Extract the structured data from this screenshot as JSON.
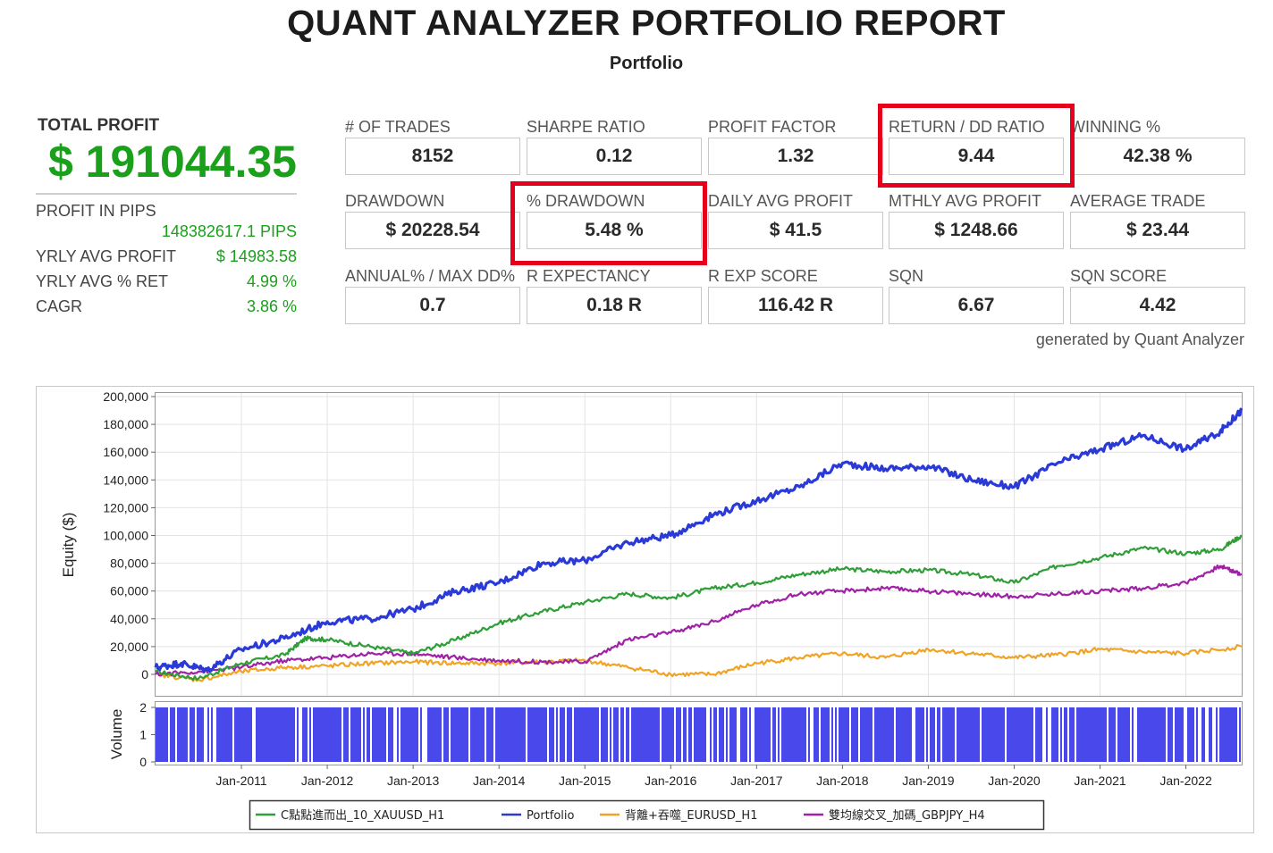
{
  "report": {
    "title": "QUANT ANALYZER PORTFOLIO REPORT",
    "subtitle": "Portfolio",
    "generated_by": "generated by Quant Analyzer"
  },
  "summary": {
    "total_profit_label": "TOTAL PROFIT",
    "total_profit_value": "$ 191044.35",
    "pips_label": "PROFIT IN PIPS",
    "pips_value": "148382617.1 PIPS",
    "rows": [
      {
        "label": "YRLY AVG PROFIT",
        "value": "$ 14983.58"
      },
      {
        "label": "YRLY AVG % RET",
        "value": "4.99 %"
      },
      {
        "label": "CAGR",
        "value": "3.86 %"
      }
    ]
  },
  "metrics": [
    {
      "label": "# OF TRADES",
      "value": "8152"
    },
    {
      "label": "SHARPE RATIO",
      "value": "0.12"
    },
    {
      "label": "PROFIT FACTOR",
      "value": "1.32"
    },
    {
      "label": "RETURN / DD RATIO",
      "value": "9.44",
      "highlighted": true
    },
    {
      "label": "WINNING %",
      "value": "42.38 %"
    },
    {
      "label": "DRAWDOWN",
      "value": "$ 20228.54"
    },
    {
      "label": "% DRAWDOWN",
      "value": "5.48 %",
      "highlighted": true
    },
    {
      "label": "DAILY AVG PROFIT",
      "value": "$ 41.5"
    },
    {
      "label": "MTHLY AVG PROFIT",
      "value": "$ 1248.66"
    },
    {
      "label": "AVERAGE TRADE",
      "value": "$ 23.44"
    },
    {
      "label": "ANNUAL% / MAX DD%",
      "value": "0.7"
    },
    {
      "label": "R EXPECTANCY",
      "value": "0.18 R"
    },
    {
      "label": "R EXP SCORE",
      "value": "116.42 R"
    },
    {
      "label": "SQN",
      "value": "6.67"
    },
    {
      "label": "SQN SCORE",
      "value": "4.42"
    }
  ],
  "colors": {
    "highlight": "#e4001b",
    "profit_green": "#1aa01a"
  },
  "chart_data": {
    "type": "line",
    "ylabel": "Equity ($)",
    "ylim": [
      -10000,
      200000
    ],
    "y_ticks": [
      "200,000",
      "180,000",
      "160,000",
      "140,000",
      "120,000",
      "100,000",
      "80,000",
      "60,000",
      "40,000",
      "20,000",
      "0"
    ],
    "x_ticks": [
      "Jan-2011",
      "Jan-2012",
      "Jan-2013",
      "Jan-2014",
      "Jan-2015",
      "Jan-2016",
      "Jan-2017",
      "Jan-2018",
      "Jan-2019",
      "Jan-2020",
      "Jan-2021",
      "Jan-2022"
    ],
    "x_range": [
      2010.0,
      2022.65
    ],
    "series": [
      {
        "name": "C點點進而出_10_XAUUSD_H1",
        "color": "#2e9e36",
        "x": [
          2010.0,
          2010.5,
          2011.0,
          2011.5,
          2011.75,
          2012.0,
          2012.5,
          2013.0,
          2013.5,
          2014.0,
          2014.5,
          2015.0,
          2015.5,
          2016.0,
          2016.5,
          2017.0,
          2017.5,
          2018.0,
          2018.5,
          2019.0,
          2019.5,
          2020.0,
          2020.5,
          2021.0,
          2021.5,
          2022.0,
          2022.4,
          2022.65
        ],
        "y": [
          2000,
          -3000,
          8000,
          14000,
          26000,
          25000,
          20000,
          15000,
          25000,
          37000,
          45000,
          52000,
          58000,
          55000,
          62000,
          66000,
          72000,
          76000,
          74000,
          75000,
          72000,
          66000,
          78000,
          84000,
          91000,
          87000,
          90000,
          100000
        ]
      },
      {
        "name": "Portfolio",
        "color": "#2a3ad8",
        "x": [
          2010.0,
          2010.3,
          2010.6,
          2011.0,
          2011.5,
          2012.0,
          2012.5,
          2013.0,
          2013.5,
          2014.0,
          2014.5,
          2015.0,
          2015.5,
          2016.0,
          2016.5,
          2017.0,
          2017.5,
          2018.0,
          2018.5,
          2019.0,
          2019.5,
          2020.0,
          2020.5,
          2021.0,
          2021.5,
          2022.0,
          2022.4,
          2022.65
        ],
        "y": [
          5000,
          8000,
          3000,
          18000,
          26000,
          38000,
          40000,
          47000,
          60000,
          66000,
          80000,
          82000,
          95000,
          100000,
          115000,
          125000,
          135000,
          152000,
          148000,
          150000,
          140000,
          135000,
          152000,
          162000,
          172000,
          162000,
          175000,
          190000
        ]
      },
      {
        "name": "背離+吞噬_EURUSD_H1",
        "color": "#f0a325",
        "x": [
          2010.0,
          2010.5,
          2011.0,
          2011.5,
          2012.0,
          2012.5,
          2013.0,
          2013.5,
          2014.0,
          2014.5,
          2015.0,
          2015.5,
          2016.0,
          2016.5,
          2017.0,
          2017.5,
          2018.0,
          2018.5,
          2019.0,
          2019.5,
          2020.0,
          2020.5,
          2021.0,
          2021.5,
          2022.0,
          2022.65
        ],
        "y": [
          0,
          -4000,
          2000,
          5000,
          6000,
          8000,
          9000,
          8000,
          8000,
          9000,
          10000,
          5000,
          0,
          0,
          8000,
          12000,
          15000,
          12000,
          18000,
          15000,
          12000,
          14000,
          18000,
          16000,
          15000,
          20000
        ]
      },
      {
        "name": "雙均線交叉_加碼_GBPJPY_H4",
        "color": "#a020a8",
        "x": [
          2010.0,
          2010.5,
          2011.0,
          2011.5,
          2012.0,
          2012.5,
          2013.0,
          2013.5,
          2014.0,
          2014.5,
          2015.0,
          2015.5,
          2016.0,
          2016.5,
          2017.0,
          2017.5,
          2018.0,
          2018.5,
          2019.0,
          2019.5,
          2020.0,
          2020.5,
          2021.0,
          2021.5,
          2022.0,
          2022.4,
          2022.65
        ],
        "y": [
          0,
          2000,
          5000,
          10000,
          12000,
          15000,
          15000,
          12000,
          10000,
          9000,
          9000,
          25000,
          30000,
          38000,
          50000,
          58000,
          60000,
          62000,
          60000,
          58000,
          56000,
          58000,
          60000,
          62000,
          66000,
          78000,
          72000
        ]
      }
    ],
    "volume": {
      "ylabel": "Volume",
      "ylim": [
        0,
        2
      ],
      "y_ticks": [
        "2",
        "1",
        "0"
      ],
      "color": "#1a1ae6"
    },
    "grid": true,
    "legend": "bottom"
  }
}
